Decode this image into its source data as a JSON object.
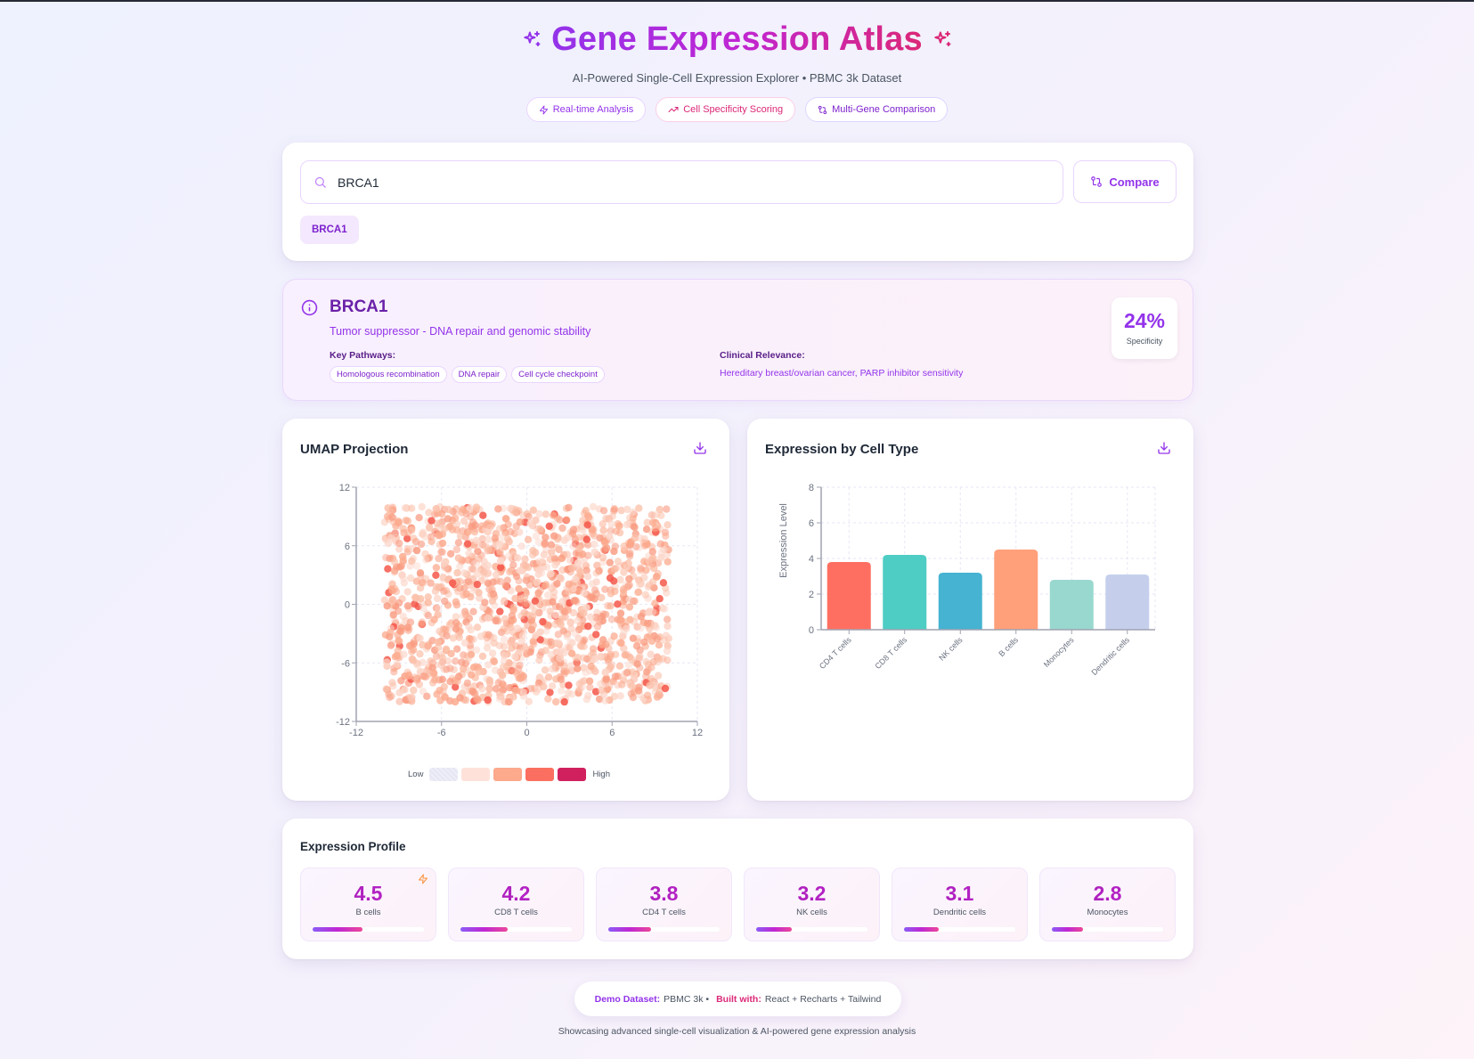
{
  "header": {
    "title": "Gene Expression Atlas",
    "subtitle": "AI-Powered Single-Cell Expression Explorer • PBMC 3k Dataset",
    "badges": [
      {
        "label": "Real-time Analysis",
        "icon": "zap-icon"
      },
      {
        "label": "Cell Specificity Scoring",
        "icon": "trending-up-icon"
      },
      {
        "label": "Multi-Gene Comparison",
        "icon": "git-compare-icon"
      }
    ]
  },
  "search": {
    "value": "BRCA1",
    "placeholder": "",
    "compare_label": "Compare",
    "selected_genes": [
      "BRCA1"
    ]
  },
  "gene_info": {
    "name": "BRCA1",
    "description": "Tumor suppressor - DNA repair and genomic stability",
    "pathways_label": "Key Pathways:",
    "pathways": [
      "Homologous recombination",
      "DNA repair",
      "Cell cycle checkpoint"
    ],
    "clinical_label": "Clinical Relevance:",
    "clinical_text": "Hereditary breast/ovarian cancer, PARP inhibitor sensitivity",
    "specificity_value": "24%",
    "specificity_label": "Specificity"
  },
  "umap": {
    "title": "UMAP Projection",
    "legend_low": "Low",
    "legend_high": "High",
    "legend_colors": [
      "#e8e8f4",
      "#fee2da",
      "#fca98c",
      "#fb6f60",
      "#d0215e"
    ]
  },
  "barchart": {
    "title": "Expression by Cell Type"
  },
  "chart_data": [
    {
      "type": "scatter",
      "title": "UMAP Projection",
      "xlabel": "",
      "ylabel": "",
      "xlim": [
        -12,
        12
      ],
      "ylim": [
        -12,
        12
      ],
      "xticks": [
        -12,
        -6,
        0,
        6,
        12
      ],
      "yticks": [
        -12,
        -6,
        0,
        6,
        12
      ],
      "grid": true,
      "point_count_approx": 1500,
      "point_extent": {
        "x": [
          -10,
          10
        ],
        "y": [
          -10,
          10
        ]
      },
      "color_scale": {
        "low": "#e8e8f4",
        "high": "#d0215e"
      }
    },
    {
      "type": "bar",
      "title": "Expression by Cell Type",
      "categories": [
        "CD4 T cells",
        "CD8 T cells",
        "NK cells",
        "B cells",
        "Monocytes",
        "Dendritic cells"
      ],
      "values": [
        3.8,
        4.2,
        3.2,
        4.5,
        2.8,
        3.1
      ],
      "colors": [
        "#ff6f61",
        "#4ecdc4",
        "#45b3d1",
        "#ffa07a",
        "#98d8cf",
        "#c5cfec"
      ],
      "xlabel": "",
      "ylabel": "Expression Level",
      "ylim": [
        0,
        8
      ],
      "yticks": [
        0,
        2,
        4,
        6,
        8
      ],
      "grid": true
    }
  ],
  "profile": {
    "title": "Expression Profile",
    "max": 10,
    "items": [
      {
        "value": "4.5",
        "label": "B cells",
        "pct": 45,
        "top": true
      },
      {
        "value": "4.2",
        "label": "CD8 T cells",
        "pct": 42
      },
      {
        "value": "3.8",
        "label": "CD4 T cells",
        "pct": 38
      },
      {
        "value": "3.2",
        "label": "NK cells",
        "pct": 32
      },
      {
        "value": "3.1",
        "label": "Dendritic cells",
        "pct": 31
      },
      {
        "value": "2.8",
        "label": "Monocytes",
        "pct": 28
      }
    ]
  },
  "footer": {
    "dataset_key": "Demo Dataset:",
    "dataset_val": "PBMC 3k •",
    "built_key": "Built with:",
    "built_val": "React + Recharts + Tailwind",
    "tagline": "Showcasing advanced single-cell visualization & AI-powered gene expression analysis"
  },
  "colors": {
    "accent": "#9333ea",
    "accent_pink": "#db2777",
    "magenta": "#c026d3"
  }
}
